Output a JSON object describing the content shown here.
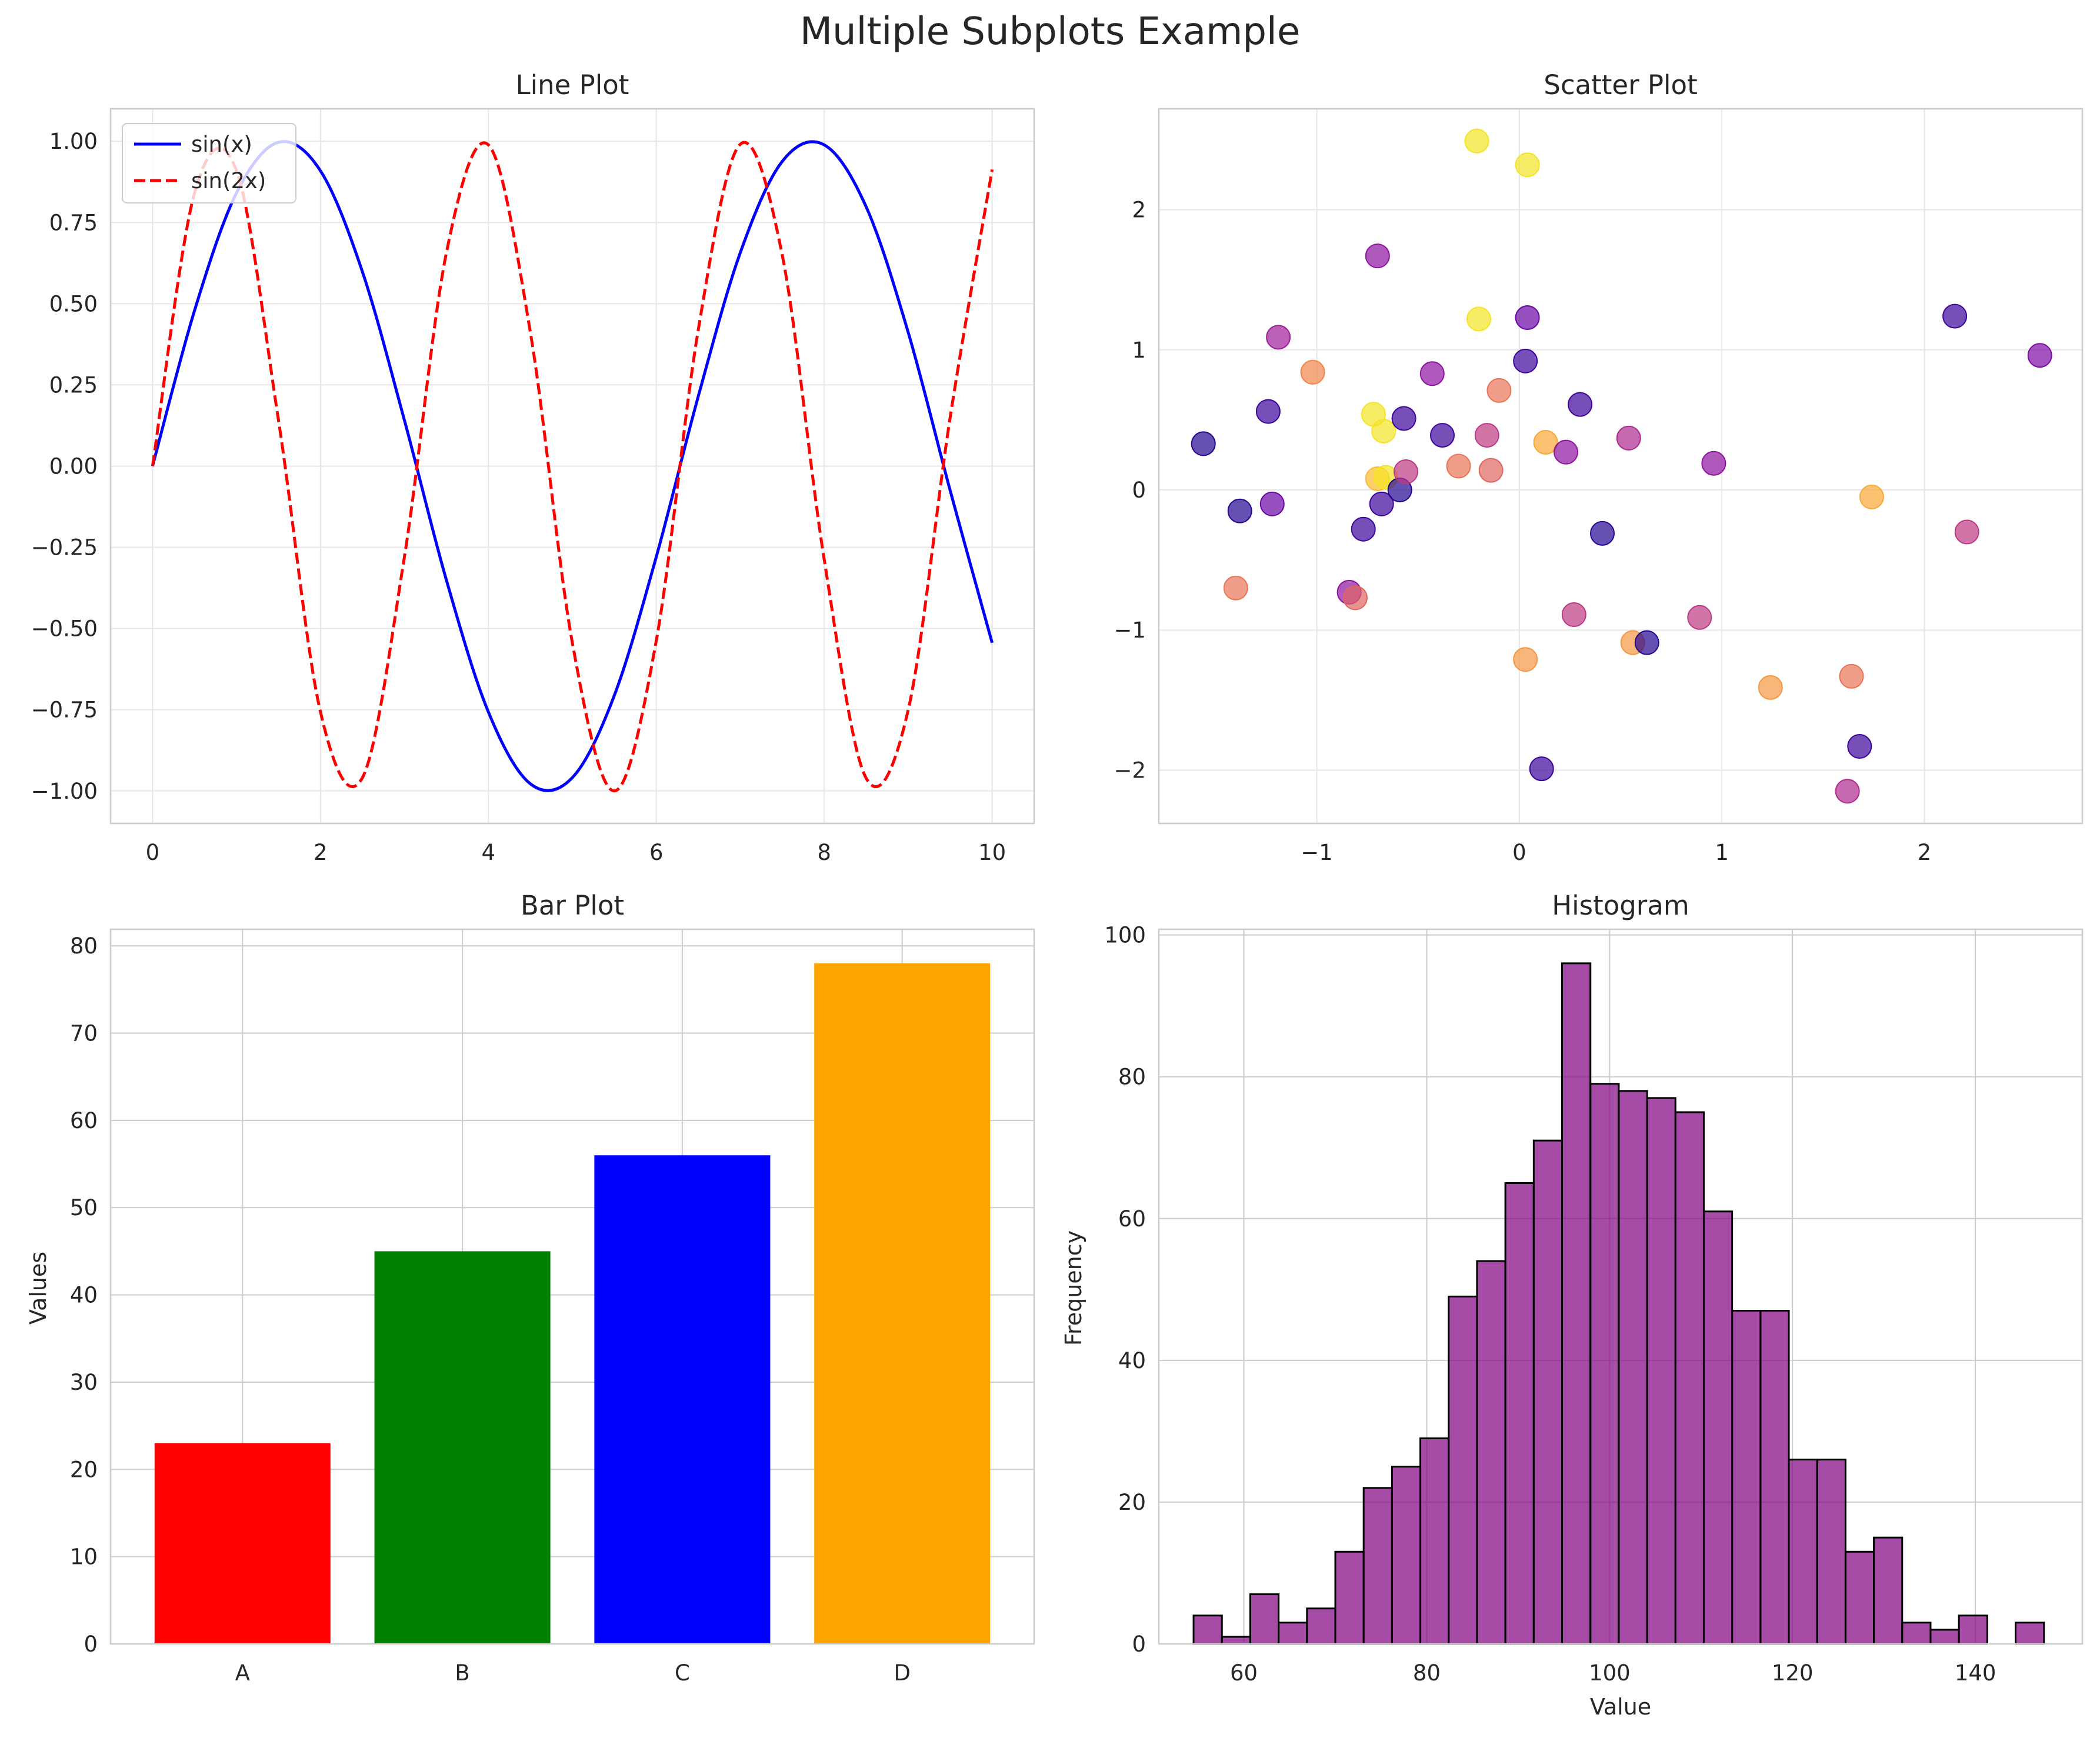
{
  "figure": {
    "title": "Multiple Subplots Example"
  },
  "chart_data": [
    {
      "type": "line",
      "title": "Line Plot",
      "xlabel": "",
      "ylabel": "",
      "xlim": [
        -0.5,
        10.5
      ],
      "ylim": [
        -1.1,
        1.1
      ],
      "xticks": [
        0,
        2,
        4,
        6,
        8,
        10
      ],
      "yticks": [
        -1.0,
        -0.75,
        -0.5,
        -0.25,
        0.0,
        0.25,
        0.5,
        0.75,
        1.0
      ],
      "ytick_labels": [
        "−1.00",
        "−0.75",
        "−0.50",
        "−0.25",
        "0.00",
        "0.25",
        "0.50",
        "0.75",
        "1.00"
      ],
      "grid": true,
      "legend_position": "top-left",
      "x": [
        0,
        0.5,
        1,
        1.5,
        2,
        2.5,
        3,
        3.5,
        4,
        4.5,
        5,
        5.5,
        6,
        6.5,
        7,
        7.5,
        8,
        8.5,
        9,
        9.5,
        10
      ],
      "series": [
        {
          "name": "sin(x)",
          "color": "#0000ff",
          "style": "solid",
          "values": [
            0.0,
            0.479,
            0.841,
            0.997,
            0.909,
            0.598,
            0.141,
            -0.351,
            -0.757,
            -0.978,
            -0.959,
            -0.706,
            -0.279,
            0.215,
            0.657,
            0.938,
            0.989,
            0.798,
            0.412,
            -0.075,
            -0.544
          ]
        },
        {
          "name": "sin(2x)",
          "color": "#ff0000",
          "style": "dashed",
          "values": [
            0.0,
            0.841,
            0.909,
            0.141,
            -0.757,
            -0.959,
            -0.279,
            0.657,
            0.989,
            0.412,
            -0.544,
            -1.0,
            -0.537,
            0.42,
            0.991,
            0.65,
            -0.288,
            -0.961,
            -0.751,
            0.15,
            0.913
          ]
        }
      ]
    },
    {
      "type": "scatter",
      "title": "Scatter Plot",
      "xlabel": "",
      "ylabel": "",
      "xlim": [
        -1.78,
        2.78
      ],
      "ylim": [
        -2.38,
        2.72
      ],
      "xticks": [
        -1,
        0,
        1,
        2
      ],
      "xtick_labels": [
        "−1",
        "0",
        "1",
        "2"
      ],
      "yticks": [
        -2,
        -1,
        0,
        1,
        2
      ],
      "ytick_labels": [
        "−2",
        "−1",
        "0",
        "1",
        "2"
      ],
      "grid": true,
      "colormap": [
        "#0d0887",
        "#5c01a6",
        "#9c179e",
        "#cc4778",
        "#ed7953",
        "#fdb42f",
        "#f0f921"
      ],
      "points": [
        {
          "x": -1.56,
          "y": 0.33,
          "c": 0.05
        },
        {
          "x": -1.38,
          "y": -0.15,
          "c": 0.05
        },
        {
          "x": -1.4,
          "y": -0.7,
          "c": 0.65
        },
        {
          "x": -1.24,
          "y": 0.56,
          "c": 0.1
        },
        {
          "x": -1.22,
          "y": -0.1,
          "c": 0.2
        },
        {
          "x": -1.19,
          "y": 1.09,
          "c": 0.35
        },
        {
          "x": -1.02,
          "y": 0.84,
          "c": 0.7
        },
        {
          "x": -0.84,
          "y": -0.73,
          "c": 0.3
        },
        {
          "x": -0.81,
          "y": -0.77,
          "c": 0.6
        },
        {
          "x": -0.77,
          "y": -0.28,
          "c": 0.1
        },
        {
          "x": -0.72,
          "y": 0.54,
          "c": 0.95
        },
        {
          "x": -0.7,
          "y": 1.67,
          "c": 0.3
        },
        {
          "x": -0.7,
          "y": 0.08,
          "c": 0.85
        },
        {
          "x": -0.68,
          "y": -0.1,
          "c": 0.1
        },
        {
          "x": -0.67,
          "y": 0.42,
          "c": 0.95
        },
        {
          "x": -0.66,
          "y": 0.09,
          "c": 0.95
        },
        {
          "x": -0.59,
          "y": 0.0,
          "c": 0.05
        },
        {
          "x": -0.57,
          "y": 0.51,
          "c": 0.1
        },
        {
          "x": -0.56,
          "y": 0.13,
          "c": 0.45
        },
        {
          "x": -0.43,
          "y": 0.83,
          "c": 0.3
        },
        {
          "x": -0.38,
          "y": 0.39,
          "c": 0.1
        },
        {
          "x": -0.3,
          "y": 0.17,
          "c": 0.65
        },
        {
          "x": -0.21,
          "y": 2.49,
          "c": 0.95
        },
        {
          "x": -0.2,
          "y": 1.22,
          "c": 0.95
        },
        {
          "x": -0.16,
          "y": 0.39,
          "c": 0.45
        },
        {
          "x": -0.14,
          "y": 0.14,
          "c": 0.6
        },
        {
          "x": -0.1,
          "y": 0.71,
          "c": 0.65
        },
        {
          "x": 0.03,
          "y": 0.92,
          "c": 0.1
        },
        {
          "x": 0.03,
          "y": -1.21,
          "c": 0.75
        },
        {
          "x": 0.04,
          "y": 2.32,
          "c": 0.95
        },
        {
          "x": 0.04,
          "y": 1.23,
          "c": 0.2
        },
        {
          "x": 0.11,
          "y": -1.99,
          "c": 0.1
        },
        {
          "x": 0.13,
          "y": 0.34,
          "c": 0.8
        },
        {
          "x": 0.23,
          "y": 0.27,
          "c": 0.3
        },
        {
          "x": 0.27,
          "y": -0.89,
          "c": 0.45
        },
        {
          "x": 0.3,
          "y": 0.61,
          "c": 0.1
        },
        {
          "x": 0.41,
          "y": -0.31,
          "c": 0.05
        },
        {
          "x": 0.54,
          "y": 0.37,
          "c": 0.4
        },
        {
          "x": 0.56,
          "y": -1.09,
          "c": 0.75
        },
        {
          "x": 0.63,
          "y": -1.09,
          "c": 0.05
        },
        {
          "x": 0.89,
          "y": -0.91,
          "c": 0.45
        },
        {
          "x": 0.96,
          "y": 0.19,
          "c": 0.3
        },
        {
          "x": 1.24,
          "y": -1.41,
          "c": 0.75
        },
        {
          "x": 1.62,
          "y": -2.15,
          "c": 0.4
        },
        {
          "x": 1.64,
          "y": -1.33,
          "c": 0.65
        },
        {
          "x": 1.68,
          "y": -1.83,
          "c": 0.1
        },
        {
          "x": 1.74,
          "y": -0.05,
          "c": 0.8
        },
        {
          "x": 2.15,
          "y": 1.24,
          "c": 0.1
        },
        {
          "x": 2.21,
          "y": -0.3,
          "c": 0.45
        },
        {
          "x": 2.57,
          "y": 0.96,
          "c": 0.25
        }
      ]
    },
    {
      "type": "bar",
      "title": "Bar Plot",
      "xlabel": "",
      "ylabel": "Values",
      "ylim": [
        0,
        81.9
      ],
      "yticks": [
        0,
        10,
        20,
        30,
        40,
        50,
        60,
        70,
        80
      ],
      "grid": true,
      "categories": [
        "A",
        "B",
        "C",
        "D"
      ],
      "values": [
        23,
        45,
        56,
        78
      ],
      "colors": [
        "#ff0000",
        "#008000",
        "#0000ff",
        "#ffa500"
      ]
    },
    {
      "type": "bar",
      "title": "Histogram",
      "xlabel": "Value",
      "ylabel": "Frequency",
      "xlim": [
        50.7,
        151.7
      ],
      "ylim": [
        0,
        100.8
      ],
      "xticks": [
        60,
        80,
        100,
        120,
        140
      ],
      "yticks": [
        0,
        20,
        40,
        60,
        80,
        100
      ],
      "grid": true,
      "color": "#800080",
      "edgecolor": "#000000",
      "bin_start": 54.5,
      "bin_width": 3.1,
      "counts": [
        4,
        1,
        7,
        3,
        5,
        13,
        22,
        25,
        29,
        49,
        54,
        65,
        71,
        96,
        79,
        78,
        77,
        75,
        61,
        47,
        47,
        26,
        26,
        13,
        15,
        3,
        2,
        4,
        0,
        3
      ]
    }
  ]
}
